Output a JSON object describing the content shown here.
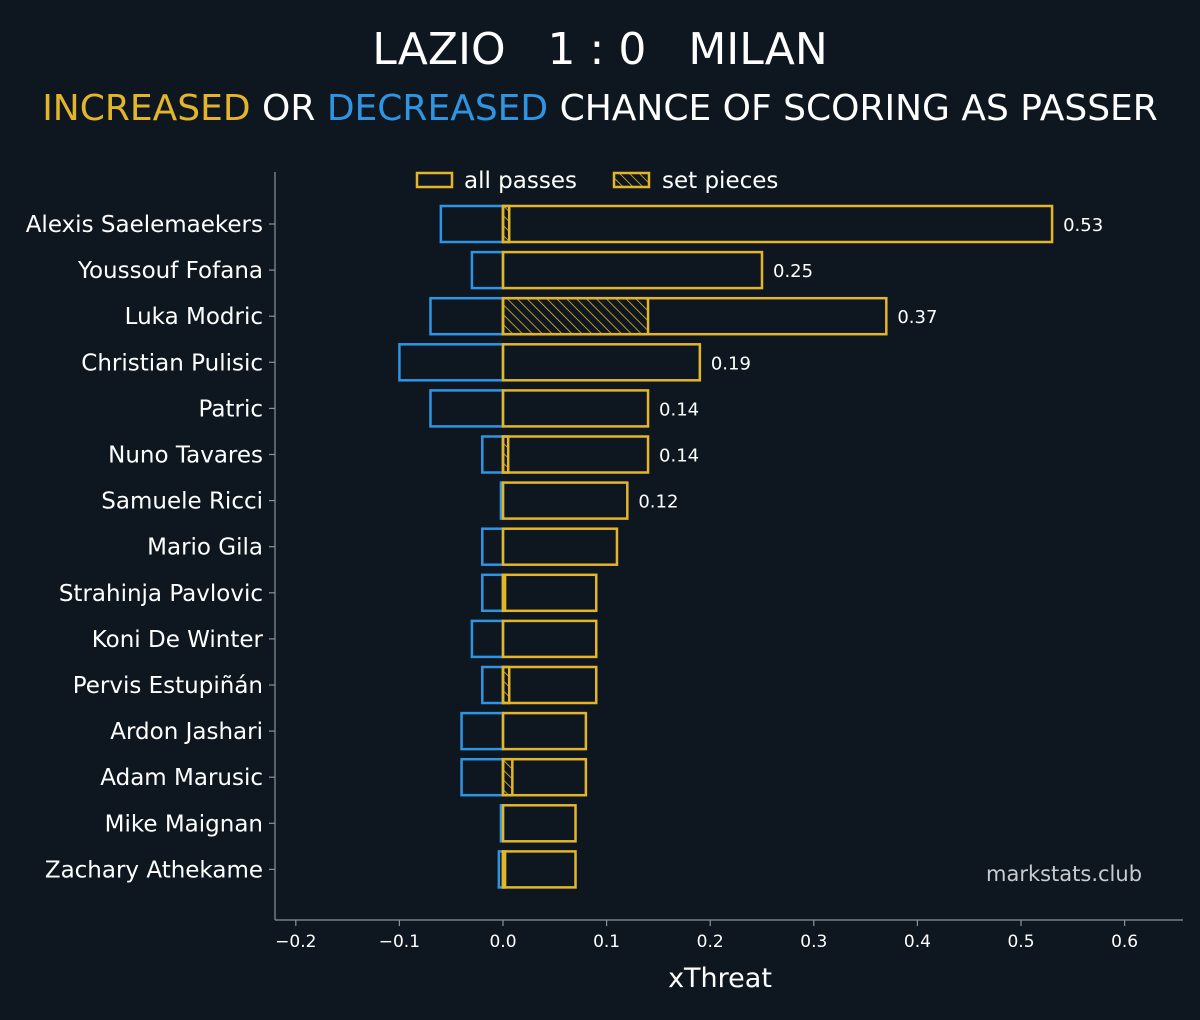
{
  "header": {
    "home": "LAZIO",
    "score": "1 : 0",
    "away": "MILAN",
    "subtitle_increased": "INCREASED",
    "subtitle_or": " OR ",
    "subtitle_decreased": "DECREASED",
    "subtitle_rest": " CHANCE OF SCORING AS PASSER"
  },
  "watermark": "markstats.club",
  "colors": {
    "background": "#0e1720",
    "increase": "#e2b52b",
    "decrease": "#2f95e3",
    "axis": "#8a9399",
    "text": "#ffffff"
  },
  "chart_data": {
    "type": "bar",
    "orientation": "horizontal",
    "xlabel": "xThreat",
    "ylabel": "",
    "xlim": [
      -0.22,
      0.66
    ],
    "xticks": [
      -0.2,
      -0.1,
      0.0,
      0.1,
      0.2,
      0.3,
      0.4,
      0.5,
      0.6
    ],
    "xtick_labels": [
      "−0.2",
      "−0.1",
      "0.0",
      "0.1",
      "0.2",
      "0.3",
      "0.4",
      "0.5",
      "0.6"
    ],
    "legend": {
      "position": "top-center",
      "entries": [
        {
          "label": "all passes",
          "style": "outline"
        },
        {
          "label": "set pieces",
          "style": "hatched"
        }
      ]
    },
    "categories": [
      "Alexis Saelemaekers",
      "Youssouf Fofana",
      "Luka Modric",
      "Christian Pulisic",
      "Patric",
      "Nuno Tavares",
      "Samuele Ricci",
      "Mario Gila",
      "Strahinja Pavlovic",
      "Koni De Winter",
      "Pervis Estupiñán",
      "Ardon Jashari",
      "Adam Marusic",
      "Mike Maignan",
      "Zachary Athekame"
    ],
    "series": [
      {
        "name": "increased (all passes)",
        "values": [
          0.53,
          0.25,
          0.37,
          0.19,
          0.14,
          0.14,
          0.12,
          0.11,
          0.09,
          0.09,
          0.09,
          0.08,
          0.08,
          0.07,
          0.07
        ]
      },
      {
        "name": "decreased (all passes)",
        "values": [
          -0.06,
          -0.03,
          -0.07,
          -0.1,
          -0.07,
          -0.02,
          -0.002,
          -0.02,
          -0.02,
          -0.03,
          -0.02,
          -0.04,
          -0.04,
          -0.002,
          -0.004
        ]
      },
      {
        "name": "set pieces",
        "values": [
          0.006,
          0,
          0.14,
          0,
          0,
          0.005,
          0,
          0,
          0.002,
          0,
          0.006,
          0,
          0.009,
          0,
          0.002
        ]
      }
    ],
    "data_labels": [
      "0.53",
      "0.25",
      "0.37",
      "0.19",
      "0.14",
      "0.14",
      "0.12",
      "",
      "",
      "",
      "",
      "",
      "",
      "",
      ""
    ]
  }
}
